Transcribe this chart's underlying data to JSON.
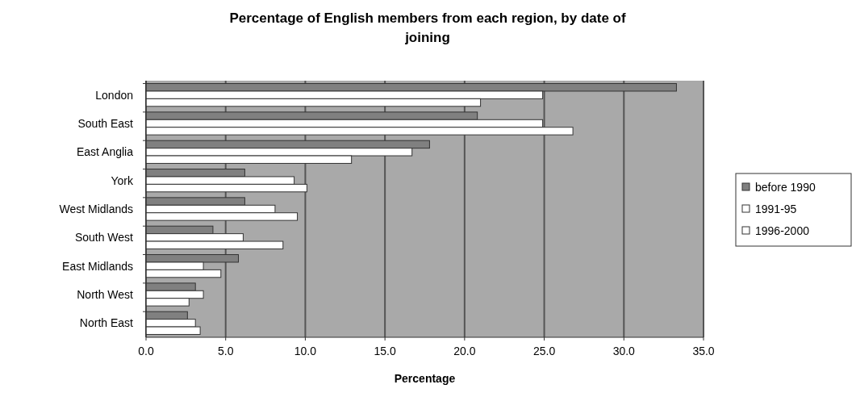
{
  "chart_data": {
    "type": "bar",
    "orientation": "horizontal",
    "title": "Percentage of English members from each region, by date of joining",
    "xlabel": "Percentage",
    "categories": [
      "London",
      "South East",
      "East Anglia",
      "York",
      "West Midlands",
      "South West",
      "East Midlands",
      "North West",
      "North East"
    ],
    "series": [
      {
        "name": "before 1990",
        "color": "#808080",
        "values": [
          33.3,
          20.8,
          17.8,
          6.2,
          6.2,
          4.2,
          5.8,
          3.1,
          2.6
        ]
      },
      {
        "name": "1991-95",
        "color": "#ffffff",
        "values": [
          24.9,
          24.9,
          16.7,
          9.3,
          8.1,
          6.1,
          3.6,
          3.6,
          3.1
        ]
      },
      {
        "name": "1996-2000",
        "color": "#ffffff",
        "values": [
          21.0,
          26.8,
          12.9,
          10.1,
          9.5,
          8.6,
          4.7,
          2.7,
          3.4
        ]
      }
    ],
    "xlim": [
      0,
      35
    ],
    "xticks": [
      {
        "value": 0,
        "label": "0.0"
      },
      {
        "value": 5,
        "label": "5.0"
      },
      {
        "value": 10,
        "label": "10.0"
      },
      {
        "value": 15,
        "label": "15.0"
      },
      {
        "value": 20,
        "label": "20.0"
      },
      {
        "value": 25,
        "label": "25.0"
      },
      {
        "value": 30,
        "label": "30.0"
      },
      {
        "value": 35,
        "label": "35.0"
      }
    ],
    "grid": "x",
    "legend": "right"
  }
}
